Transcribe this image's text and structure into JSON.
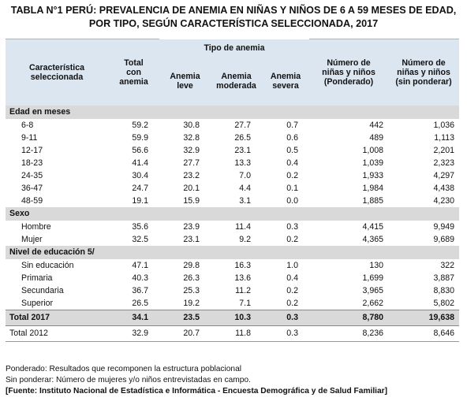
{
  "title_line1": "TABLA N°1 PERÚ: PREVALENCIA DE ANEMIA EN NIÑAS Y NIÑOS DE 6 A 59 MESES DE EDAD,",
  "title_line2": "POR TIPO, SEGÚN CARACTERÍSTICA SELECCIONADA, 2017",
  "headers": {
    "caracteristica": "Característica seleccionada",
    "total": "Total con anemia",
    "tipo": "Tipo de anemia",
    "leve": "Anemia leve",
    "moderada": "Anemia moderada",
    "severa": "Anemia severa",
    "ponderado": "Número de niñas y niños (Ponderado)",
    "sin_ponderar": "Número de niñas y niños (sin ponderar)"
  },
  "sections": [
    {
      "title": "Edad en meses",
      "rows": [
        [
          "6-8",
          "59.2",
          "30.8",
          "27.7",
          "0.7",
          "442",
          "1,036"
        ],
        [
          "9-11",
          "59.9",
          "32.8",
          "26.5",
          "0.6",
          "489",
          "1,113"
        ],
        [
          "12-17",
          "56.6",
          "32.9",
          "23.1",
          "0.5",
          "1,008",
          "2,201"
        ],
        [
          "18-23",
          "41.4",
          "27.7",
          "13.3",
          "0.4",
          "1,039",
          "2,323"
        ],
        [
          "24-35",
          "30.4",
          "23.2",
          "7.0",
          "0.2",
          "1,933",
          "4,297"
        ],
        [
          "36-47",
          "24.7",
          "20.1",
          "4.4",
          "0.1",
          "1,984",
          "4,438"
        ],
        [
          "48-59",
          "19.1",
          "15.9",
          "3.1",
          "0.0",
          "1,885",
          "4,230"
        ]
      ]
    },
    {
      "title": "Sexo",
      "rows": [
        [
          "Hombre",
          "35.6",
          "23.9",
          "11.4",
          "0.3",
          "4,415",
          "9,949"
        ],
        [
          "Mujer",
          "32.5",
          "23.1",
          "9.2",
          "0.2",
          "4,365",
          "9,689"
        ]
      ]
    },
    {
      "title": "Nivel de educación 5/",
      "rows": [
        [
          "Sin educación",
          "47.1",
          "29.8",
          "16.3",
          "1.0",
          "130",
          "322"
        ],
        [
          "Primaria",
          "40.3",
          "26.3",
          "13.6",
          "0.4",
          "1,699",
          "3,887"
        ],
        [
          "Secundaria",
          "36.7",
          "25.3",
          "11.2",
          "0.2",
          "3,965",
          "8,830"
        ],
        [
          "Superior",
          "26.5",
          "19.2",
          "7.1",
          "0.2",
          "2,662",
          "5,802"
        ]
      ]
    }
  ],
  "total_2017": [
    "Total 2017",
    "34.1",
    "23.5",
    "10.3",
    "0.3",
    "8,780",
    "19,638"
  ],
  "total_2012": [
    "Total 2012",
    "32.9",
    "20.7",
    "11.8",
    "0.3",
    "8,236",
    "8,646"
  ],
  "notes": {
    "ponderado": "Ponderado:  Resultados que recomponen la estructura poblacional",
    "sin_ponderar": "Sin ponderar:  Número de mujeres y/o niños entrevistadas en campo.",
    "fuente": "[Fuente: Instituto Nacional de Estadística e Informática - Encuesta Demográfica y de Salud Familiar]"
  }
}
